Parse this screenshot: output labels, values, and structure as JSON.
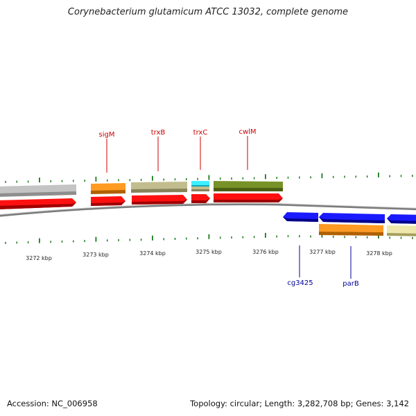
{
  "title": "Corynebacterium glutamicum ATCC 13032, complete genome",
  "footer": {
    "accession": "Accession: NC_006958",
    "summary": "Topology: circular; Length: 3,282,708 bp; Genes: 3,142"
  },
  "colors": {
    "backbone": "#808080",
    "tick": "#1a7a1a",
    "cds": "#ff0000",
    "reverse_cds": "#0000ff",
    "cog_orange": "#ff9922",
    "cog_khaki": "#bdb98a",
    "cog_olive": "#6f8b26",
    "cog_cyan": "#22e0f0",
    "cog_grey": "#c0c0c0",
    "cog_pale": "#eee7a8",
    "label_forward": "#cc0000",
    "label_reverse": "#000099"
  },
  "scale": {
    "unit": "kbp",
    "labels": [
      "3272 kbp",
      "3273 kbp",
      "3274 kbp",
      "3275 kbp",
      "3276 kbp",
      "3277 kbp",
      "3278 kbp"
    ]
  },
  "gene_labels": [
    {
      "name": "sigM",
      "strand": "forward"
    },
    {
      "name": "trxB",
      "strand": "forward"
    },
    {
      "name": "trxC",
      "strand": "forward"
    },
    {
      "name": "cwlM",
      "strand": "forward"
    },
    {
      "name": "cg3425",
      "strand": "reverse"
    },
    {
      "name": "parB",
      "strand": "reverse"
    }
  ],
  "features": [
    {
      "name": "sigM",
      "strand": "forward",
      "cog_color": "cog_orange"
    },
    {
      "name": "trxB",
      "strand": "forward",
      "cog_color": "cog_khaki"
    },
    {
      "name": "trxC",
      "strand": "forward",
      "cog_color": "cog_cyan"
    },
    {
      "name": "cwlM",
      "strand": "forward",
      "cog_color": "cog_olive"
    },
    {
      "name": "cg3425",
      "strand": "reverse"
    },
    {
      "name": "parB",
      "strand": "reverse",
      "cog_color": "cog_orange"
    }
  ]
}
